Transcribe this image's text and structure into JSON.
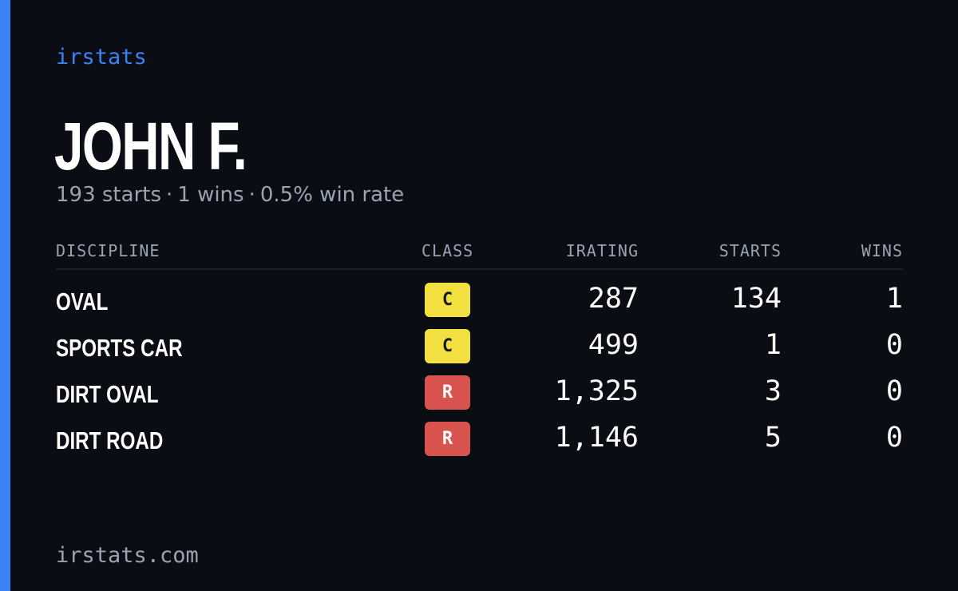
{
  "brand": "irstats",
  "colors": {
    "accent": "#3b82f6",
    "background": "#0b0d14",
    "muted": "#9aa3b2",
    "class_c": "#f2e040",
    "class_r": "#d9534f"
  },
  "driver": {
    "name": "JOHN F.",
    "starts_text": "193 starts",
    "wins_text": "1 wins",
    "rate_text": "0.5% win rate",
    "separator": "·"
  },
  "table": {
    "headers": {
      "discipline": "DISCIPLINE",
      "class": "CLASS",
      "irating": "IRATING",
      "starts": "STARTS",
      "wins": "WINS"
    },
    "rows": [
      {
        "discipline": "OVAL",
        "class": "C",
        "irating": "287",
        "starts": "134",
        "wins": "1"
      },
      {
        "discipline": "SPORTS CAR",
        "class": "C",
        "irating": "499",
        "starts": "1",
        "wins": "0"
      },
      {
        "discipline": "DIRT OVAL",
        "class": "R",
        "irating": "1,325",
        "starts": "3",
        "wins": "0"
      },
      {
        "discipline": "DIRT ROAD",
        "class": "R",
        "irating": "1,146",
        "starts": "5",
        "wins": "0"
      }
    ]
  },
  "footer": "irstats.com"
}
